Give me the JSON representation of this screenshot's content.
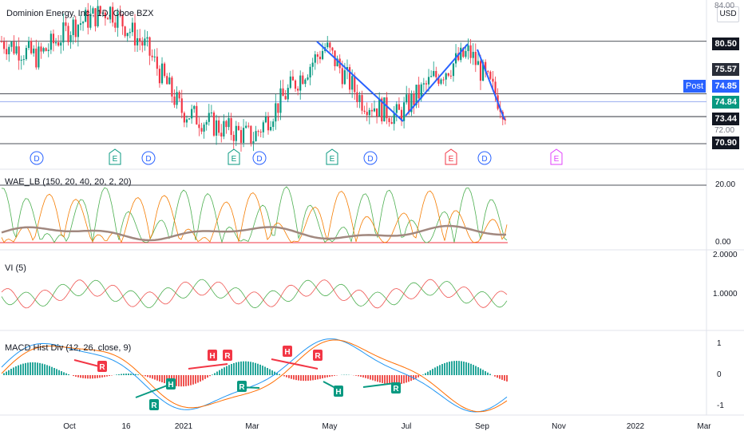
{
  "header": {
    "symbol_title": "Dominion Energy, Inc., 1D, Cboe BZX",
    "currency": "USD"
  },
  "price_axis": {
    "levels": [
      "84.00",
      "80.50",
      "75.57",
      "74.85",
      "74.84",
      "73.44",
      "72.00",
      "70.90"
    ],
    "post_label": "Post"
  },
  "time_axis": {
    "labels": [
      "Oct",
      "16",
      "2021",
      "Mar",
      "May",
      "Jul",
      "Sep",
      "Nov",
      "2022",
      "Mar"
    ]
  },
  "panes": {
    "wae": {
      "title": "WAE_LB (150, 20, 40, 20, 2, 20)",
      "levels": [
        "20.00",
        "0.00"
      ]
    },
    "vi": {
      "title": "VI (5)",
      "levels": [
        "2.0000",
        "1.0000"
      ]
    },
    "macd": {
      "title": "MACD Hist Div (12, 26, close, 9)",
      "levels": [
        "1",
        "0",
        "-1"
      ]
    }
  },
  "events": {
    "markers": [
      {
        "t": "D",
        "color": "#2962ff"
      },
      {
        "t": "E",
        "color": "#089981"
      },
      {
        "t": "D",
        "color": "#2962ff"
      },
      {
        "t": "E",
        "color": "#089981"
      },
      {
        "t": "D",
        "color": "#2962ff"
      },
      {
        "t": "E",
        "color": "#089981"
      },
      {
        "t": "D",
        "color": "#2962ff"
      },
      {
        "t": "E",
        "color": "#f23645"
      },
      {
        "t": "D",
        "color": "#2962ff"
      },
      {
        "t": "E",
        "color": "#e040fb"
      }
    ]
  },
  "divergence_labels": [
    "R",
    "R",
    "H",
    "R",
    "H",
    "R",
    "H",
    "R",
    "H",
    "R",
    "H",
    "R"
  ],
  "chart_data": [
    {
      "type": "candlestick",
      "title": "Dominion Energy, Inc., 1D, Cboe BZX",
      "close_path": [
        [
          "Sep",
          80.5
        ],
        [
          "Oct",
          79.0
        ],
        [
          "Oct 16",
          82.0
        ],
        [
          "Nov",
          83.5
        ],
        [
          "Dec",
          80.0
        ],
        [
          "2021",
          74.0
        ],
        [
          "Feb",
          72.5
        ],
        [
          "Mar",
          71.5
        ],
        [
          "Apr",
          76.0
        ],
        [
          "May",
          80.0
        ],
        [
          "Jun",
          75.0
        ],
        [
          "Jul",
          73.5
        ],
        [
          "Aug",
          77.0
        ],
        [
          "Sep",
          79.5
        ],
        [
          "Sep end",
          74.0
        ]
      ],
      "horizontal_levels": [
        80.5,
        75.57,
        74.85,
        74.84,
        73.44,
        70.9
      ],
      "colors": {
        "up": "#089981",
        "down": "#f23645",
        "trendline": "#2962ff"
      }
    },
    {
      "type": "line",
      "title": "WAE_LB (150, 20, 40, 20, 2, 20)",
      "ylim": [
        0,
        20
      ]
    },
    {
      "type": "line",
      "title": "VI (5)",
      "ylim": [
        0.5,
        2.0
      ]
    },
    {
      "type": "bar",
      "title": "MACD Hist Div (12, 26, close, 9)",
      "ylim": [
        -1,
        1
      ]
    }
  ]
}
